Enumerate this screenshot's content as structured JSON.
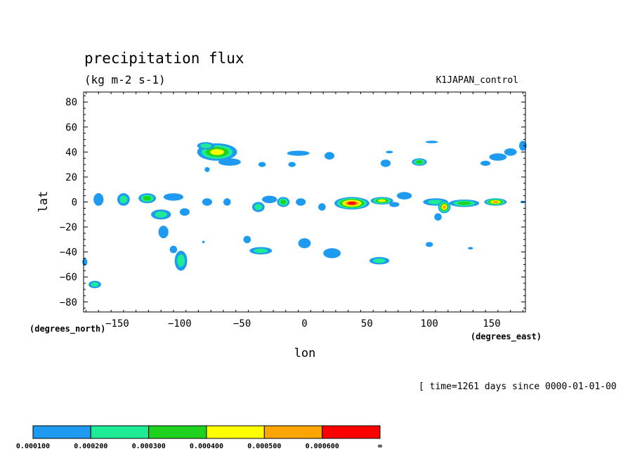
{
  "chart_data": {
    "type": "heatmap",
    "title": "precipitation flux",
    "units": "(kg m-2 s-1)",
    "dataset": "K1JAPAN_control",
    "time_label": "[ time=1261 days since 0000-01-01-00",
    "xlabel": "lon",
    "ylabel": "lat",
    "x_unit_label": "(degrees_east)",
    "y_unit_label": "(degrees_north)",
    "xlim": [
      -177,
      177
    ],
    "ylim": [
      -88,
      88
    ],
    "x_ticks": [
      -150,
      -100,
      -50,
      0,
      50,
      100,
      150
    ],
    "x_tick_labels": [
      "-150",
      "-100",
      "-50",
      "0",
      "50",
      "100",
      "150"
    ],
    "y_ticks": [
      80,
      60,
      40,
      20,
      0,
      -20,
      -40,
      -60,
      -80
    ],
    "y_tick_labels": [
      "80",
      "60",
      "40",
      "20",
      "0",
      "-20",
      "-40",
      "-60",
      "-80"
    ],
    "colorbar": {
      "labels": [
        "0.000100",
        "0.000200",
        "0.000300",
        "0.000400",
        "0.000500",
        "0.000600",
        "∞"
      ],
      "colors": [
        "#1e9bf0",
        "#1eeb96",
        "#1ed21e",
        "#ffff00",
        "#ffa500",
        "#ff0000"
      ]
    },
    "cells": [
      {
        "lon": -70,
        "lat": 40,
        "wx": 16,
        "wy": 7,
        "level": 4
      },
      {
        "lon": -79,
        "lat": 45,
        "wx": 7,
        "wy": 3,
        "level": 2
      },
      {
        "lon": -60,
        "lat": 32,
        "wx": 9,
        "wy": 3,
        "level": 1
      },
      {
        "lon": -78,
        "lat": 26,
        "wx": 2,
        "wy": 2,
        "level": 1
      },
      {
        "lon": -5,
        "lat": 39,
        "wx": 9,
        "wy": 2,
        "level": 1
      },
      {
        "lon": 20,
        "lat": 37,
        "wx": 4,
        "wy": 3,
        "level": 1
      },
      {
        "lon": 68,
        "lat": 40,
        "wx": 3,
        "wy": 1,
        "level": 1
      },
      {
        "lon": 65,
        "lat": 31,
        "wx": 4,
        "wy": 3,
        "level": 1
      },
      {
        "lon": 92,
        "lat": 32,
        "wx": 6,
        "wy": 3,
        "level": 3
      },
      {
        "lon": 102,
        "lat": 48,
        "wx": 5,
        "wy": 1,
        "level": 1
      },
      {
        "lon": 155,
        "lat": 36,
        "wx": 7,
        "wy": 3,
        "level": 1
      },
      {
        "lon": 165,
        "lat": 40,
        "wx": 5,
        "wy": 3,
        "level": 1
      },
      {
        "lon": 145,
        "lat": 31,
        "wx": 4,
        "wy": 2,
        "level": 1
      },
      {
        "lon": 175,
        "lat": 45,
        "wx": 3,
        "wy": 4,
        "level": 1
      },
      {
        "lon": -34,
        "lat": 30,
        "wx": 3,
        "wy": 2,
        "level": 1
      },
      {
        "lon": -10,
        "lat": 30,
        "wx": 3,
        "wy": 2,
        "level": 1
      },
      {
        "lon": -165,
        "lat": 2,
        "wx": 4,
        "wy": 5,
        "level": 1
      },
      {
        "lon": -145,
        "lat": 2,
        "wx": 5,
        "wy": 5,
        "level": 2
      },
      {
        "lon": -126,
        "lat": 3,
        "wx": 7,
        "wy": 4,
        "level": 3
      },
      {
        "lon": -105,
        "lat": 4,
        "wx": 8,
        "wy": 3,
        "level": 1
      },
      {
        "lon": -115,
        "lat": -10,
        "wx": 8,
        "wy": 4,
        "level": 2
      },
      {
        "lon": -96,
        "lat": -8,
        "wx": 4,
        "wy": 3,
        "level": 1
      },
      {
        "lon": -78,
        "lat": 0,
        "wx": 4,
        "wy": 3,
        "level": 1
      },
      {
        "lon": -62,
        "lat": 0,
        "wx": 3,
        "wy": 3,
        "level": 1
      },
      {
        "lon": -37,
        "lat": -4,
        "wx": 5,
        "wy": 4,
        "level": 2
      },
      {
        "lon": -28,
        "lat": 2,
        "wx": 6,
        "wy": 3,
        "level": 1
      },
      {
        "lon": -17,
        "lat": 0,
        "wx": 5,
        "wy": 4,
        "level": 3
      },
      {
        "lon": -3,
        "lat": 0,
        "wx": 4,
        "wy": 3,
        "level": 1
      },
      {
        "lon": 14,
        "lat": -4,
        "wx": 3,
        "wy": 3,
        "level": 1
      },
      {
        "lon": 38,
        "lat": -1,
        "wx": 14,
        "wy": 5,
        "level": 6
      },
      {
        "lon": 62,
        "lat": 1,
        "wx": 9,
        "wy": 3,
        "level": 4
      },
      {
        "lon": 80,
        "lat": 5,
        "wx": 6,
        "wy": 3,
        "level": 1
      },
      {
        "lon": 72,
        "lat": -2,
        "wx": 4,
        "wy": 2,
        "level": 1
      },
      {
        "lon": 105,
        "lat": 0,
        "wx": 10,
        "wy": 3,
        "level": 2
      },
      {
        "lon": 112,
        "lat": -4,
        "wx": 5,
        "wy": 5,
        "level": 5
      },
      {
        "lon": 128,
        "lat": -1,
        "wx": 12,
        "wy": 3,
        "level": 3
      },
      {
        "lon": 153,
        "lat": 0,
        "wx": 9,
        "wy": 3,
        "level": 5
      },
      {
        "lon": 107,
        "lat": -12,
        "wx": 3,
        "wy": 3,
        "level": 1
      },
      {
        "lon": 175,
        "lat": 0,
        "wx": 2,
        "wy": 1,
        "level": 1
      },
      {
        "lon": -113,
        "lat": -24,
        "wx": 4,
        "wy": 5,
        "level": 1
      },
      {
        "lon": -99,
        "lat": -47,
        "wx": 5,
        "wy": 8,
        "level": 2
      },
      {
        "lon": -105,
        "lat": -38,
        "wx": 3,
        "wy": 3,
        "level": 1
      },
      {
        "lon": -46,
        "lat": -30,
        "wx": 3,
        "wy": 3,
        "level": 1
      },
      {
        "lon": -35,
        "lat": -39,
        "wx": 9,
        "wy": 3,
        "level": 2
      },
      {
        "lon": 0,
        "lat": -33,
        "wx": 5,
        "wy": 4,
        "level": 1
      },
      {
        "lon": 22,
        "lat": -41,
        "wx": 7,
        "wy": 4,
        "level": 1
      },
      {
        "lon": 60,
        "lat": -47,
        "wx": 8,
        "wy": 3,
        "level": 2
      },
      {
        "lon": 100,
        "lat": -34,
        "wx": 3,
        "wy": 2,
        "level": 1
      },
      {
        "lon": 133,
        "lat": -37,
        "wx": 2,
        "wy": 1,
        "level": 1
      },
      {
        "lon": -176,
        "lat": -48,
        "wx": 2,
        "wy": 3,
        "level": 1
      },
      {
        "lon": -168,
        "lat": -66,
        "wx": 5,
        "wy": 3,
        "level": 2
      },
      {
        "lon": -81,
        "lat": -32,
        "wx": 1,
        "wy": 1,
        "level": 1
      }
    ]
  }
}
